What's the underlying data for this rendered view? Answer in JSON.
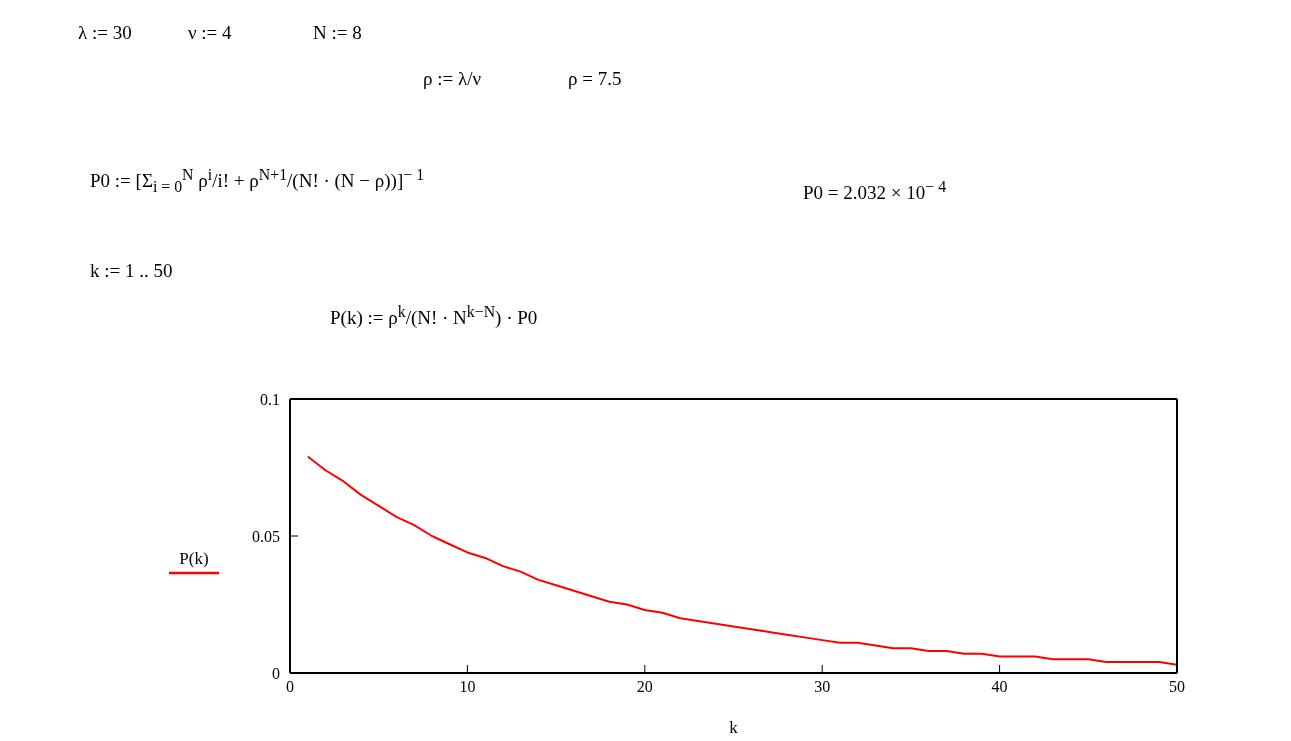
{
  "chart_data": {
    "type": "line",
    "xlabel": "k",
    "annotations": [
      "λ := 30",
      "ν := 4",
      "N := 8",
      "ρ := λ/ν",
      "ρ = 7.5",
      "P0 := [Σ$_{i = 0}$$^{N}$ ρ$^{i}$/i! + ρ$^{N+1}$/(N! · (N − ρ))]$^{− 1}$",
      "P0 = 2.032 × 10$^{− 4}$",
      "k := 1 .. 50",
      "P(k) := ρ$^{k}$/(N! · N$^{k−N}$) · P0"
    ],
    "x": [
      1,
      2,
      3,
      4,
      5,
      6,
      7,
      8,
      9,
      10,
      11,
      12,
      13,
      14,
      15,
      16,
      17,
      18,
      19,
      20,
      21,
      22,
      23,
      24,
      25,
      26,
      27,
      28,
      29,
      30,
      31,
      32,
      33,
      34,
      35,
      36,
      37,
      38,
      39,
      40,
      41,
      42,
      43,
      44,
      45,
      46,
      47,
      48,
      49,
      50
    ],
    "series": [
      {
        "name": "P(k)",
        "color": "#ff0000",
        "values": [
          0.079,
          0.074,
          0.07,
          0.065,
          0.061,
          0.057,
          0.054,
          0.05,
          0.047,
          0.044,
          0.042,
          0.039,
          0.037,
          0.034,
          0.032,
          0.03,
          0.028,
          0.026,
          0.025,
          0.023,
          0.022,
          0.02,
          0.019,
          0.018,
          0.017,
          0.016,
          0.015,
          0.014,
          0.013,
          0.012,
          0.011,
          0.011,
          0.01,
          0.009,
          0.009,
          0.008,
          0.008,
          0.007,
          0.007,
          0.006,
          0.006,
          0.006,
          0.005,
          0.005,
          0.005,
          0.004,
          0.004,
          0.004,
          0.004,
          0.003
        ]
      }
    ],
    "xlim": [
      0,
      50
    ],
    "xticks": [
      0,
      10,
      20,
      30,
      40,
      50
    ],
    "ylim": [
      0,
      0.1
    ],
    "yticks": [
      0,
      0.05,
      0.1
    ],
    "grid": false,
    "legend": "left",
    "marker": "none",
    "line_style": "solid"
  }
}
